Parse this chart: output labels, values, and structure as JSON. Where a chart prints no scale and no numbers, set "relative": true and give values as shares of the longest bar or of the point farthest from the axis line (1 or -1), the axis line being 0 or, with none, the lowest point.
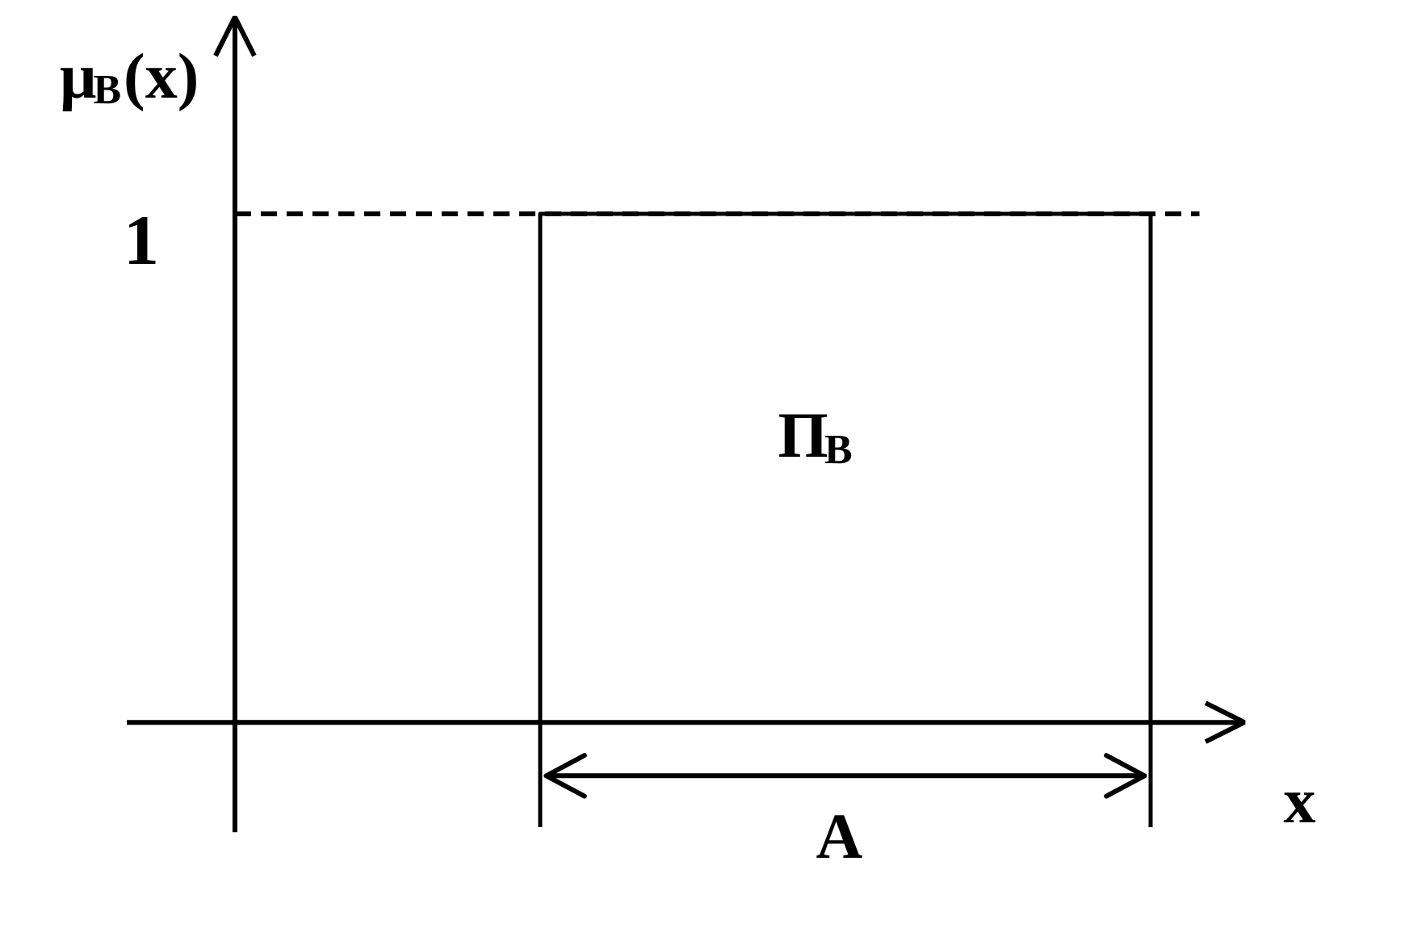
{
  "chart_data": {
    "type": "step",
    "relative": true,
    "categories": [
      null,
      null,
      null,
      null
    ],
    "values": [
      0,
      1,
      1,
      0
    ],
    "color": "#000000",
    "line_style": "solid",
    "xlabel": "x",
    "ylabel": "μ$_{B}$(x)",
    "annotations": [
      "Π$_{B}$",
      "A"
    ],
    "ref_lines": [
      {
        "axis": "y",
        "value": 1,
        "label": "1",
        "line_style": "dashed",
        "color": "#000000"
      }
    ]
  }
}
